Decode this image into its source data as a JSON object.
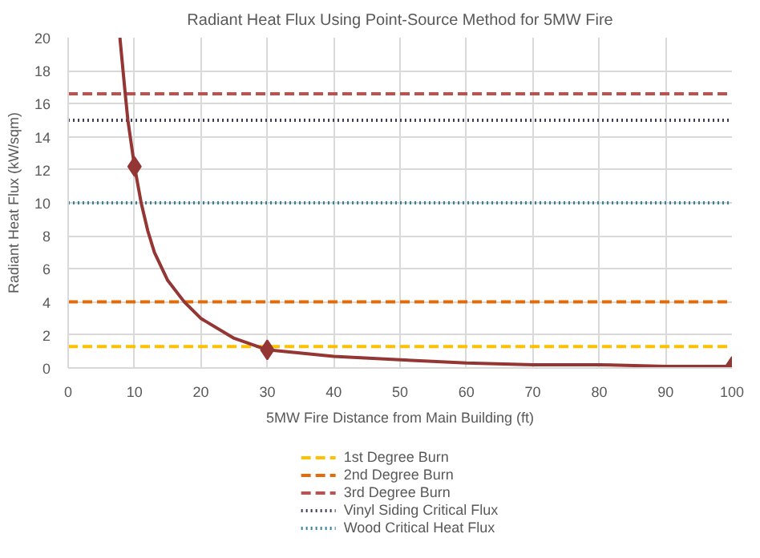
{
  "chart_data": {
    "type": "line",
    "title": "Radiant Heat Flux Using Point-Source Method for 5MW Fire",
    "xlabel": "5MW Fire Distance from Main Building (ft)",
    "ylabel": "Radiant Heat Flux (kW/sqm)",
    "xlim": [
      0,
      100
    ],
    "xticks": [
      0,
      10,
      20,
      30,
      40,
      50,
      60,
      70,
      80,
      90,
      100
    ],
    "ylim": [
      0,
      20
    ],
    "yticks": [
      0,
      2,
      4,
      6,
      8,
      10,
      12,
      14,
      16,
      18,
      20
    ],
    "grid": true,
    "legend": "bottom",
    "series": [
      {
        "type": "line",
        "color": "#943634",
        "marker": "none",
        "x": [
          7.8,
          8.6,
          9,
          10,
          11,
          12,
          13,
          15,
          17.5,
          20,
          25,
          30,
          40,
          50,
          60,
          70,
          80,
          90,
          100
        ],
        "values": [
          20,
          16.6,
          15,
          12.2,
          10,
          8.3,
          7,
          5.3,
          4,
          3,
          1.8,
          1.1,
          0.7,
          0.5,
          0.3,
          0.2,
          0.2,
          0.1,
          0.1
        ]
      },
      {
        "type": "scatter",
        "color": "#943634",
        "marker": "diamond",
        "x": [
          10,
          30,
          100
        ],
        "values": [
          12.2,
          1.1,
          0.1
        ]
      }
    ],
    "ref_lines": [
      {
        "axis": "y",
        "value": 1.3,
        "label": "1st Degree Burn",
        "color": "#ffc000",
        "line_style": "dashed"
      },
      {
        "axis": "y",
        "value": 4,
        "label": "2nd Degree Burn",
        "color": "#e36c09",
        "line_style": "dashed"
      },
      {
        "axis": "y",
        "value": 16.6,
        "label": "3rd Degree Burn",
        "color": "#c0504d",
        "line_style": "dashed"
      },
      {
        "axis": "y",
        "value": 15,
        "label": "Vinyl Siding Critical Flux",
        "color": "#3f3f5f",
        "line_style": "dotted"
      },
      {
        "axis": "y",
        "value": 10,
        "label": "Wood Critical Heat Flux",
        "color": "#31859c",
        "line_style": "dotted"
      }
    ]
  }
}
